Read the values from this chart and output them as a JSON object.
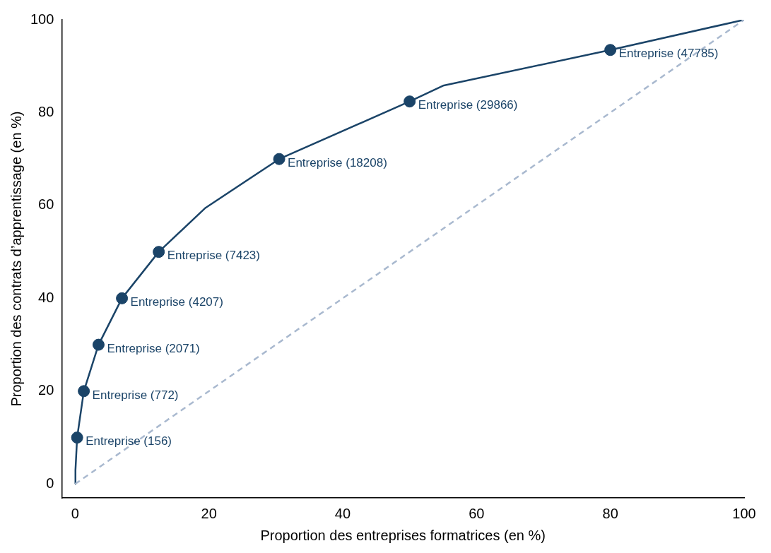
{
  "chart_data": {
    "type": "line",
    "xlabel": "Proportion des entreprises formatrices (en %)",
    "ylabel": "Proportion des contrats d’apprentissage (en %)",
    "xlim": [
      -2,
      100
    ],
    "ylim": [
      -3,
      100
    ],
    "xticks": [
      0,
      20,
      40,
      60,
      80,
      100
    ],
    "yticks": [
      0,
      20,
      40,
      60,
      80,
      100
    ],
    "grid": false,
    "legend": false,
    "series": [
      {
        "color": "#a9b9cf",
        "line_style": "dashed",
        "marker": "none",
        "x": [
          0,
          100
        ],
        "values": [
          0,
          100
        ]
      },
      {
        "color": "#1b4468",
        "line_style": "solid",
        "marker": "none",
        "x": [
          0,
          0.05,
          0.3,
          1.3,
          3.5,
          7,
          12.5,
          19.5,
          30.5,
          50,
          55,
          80,
          100
        ],
        "values": [
          0,
          3,
          10,
          20,
          30,
          40,
          50,
          59.5,
          70,
          82.4,
          85.8,
          93.5,
          100
        ]
      },
      {
        "type": "scatter",
        "color": "#1b4468",
        "marker": "circle",
        "x": [
          0.3,
          1.3,
          3.5,
          7,
          12.5,
          30.5,
          50,
          80
        ],
        "values": [
          10,
          20,
          30,
          40,
          50,
          70,
          82.4,
          93.5
        ]
      }
    ],
    "annotations": [
      {
        "text": "Entreprise (156)",
        "x": 0.3,
        "y": 10
      },
      {
        "text": "Entreprise (772)",
        "x": 1.3,
        "y": 20
      },
      {
        "text": "Entreprise (2071)",
        "x": 3.5,
        "y": 30
      },
      {
        "text": "Entreprise (4207)",
        "x": 7,
        "y": 40
      },
      {
        "text": "Entreprise (7423)",
        "x": 12.5,
        "y": 50
      },
      {
        "text": "Entreprise (18208)",
        "x": 30.5,
        "y": 70
      },
      {
        "text": "Entreprise (29866)",
        "x": 50,
        "y": 82.4
      },
      {
        "text": "Entreprise (47785)",
        "x": 80,
        "y": 93.5
      }
    ]
  }
}
